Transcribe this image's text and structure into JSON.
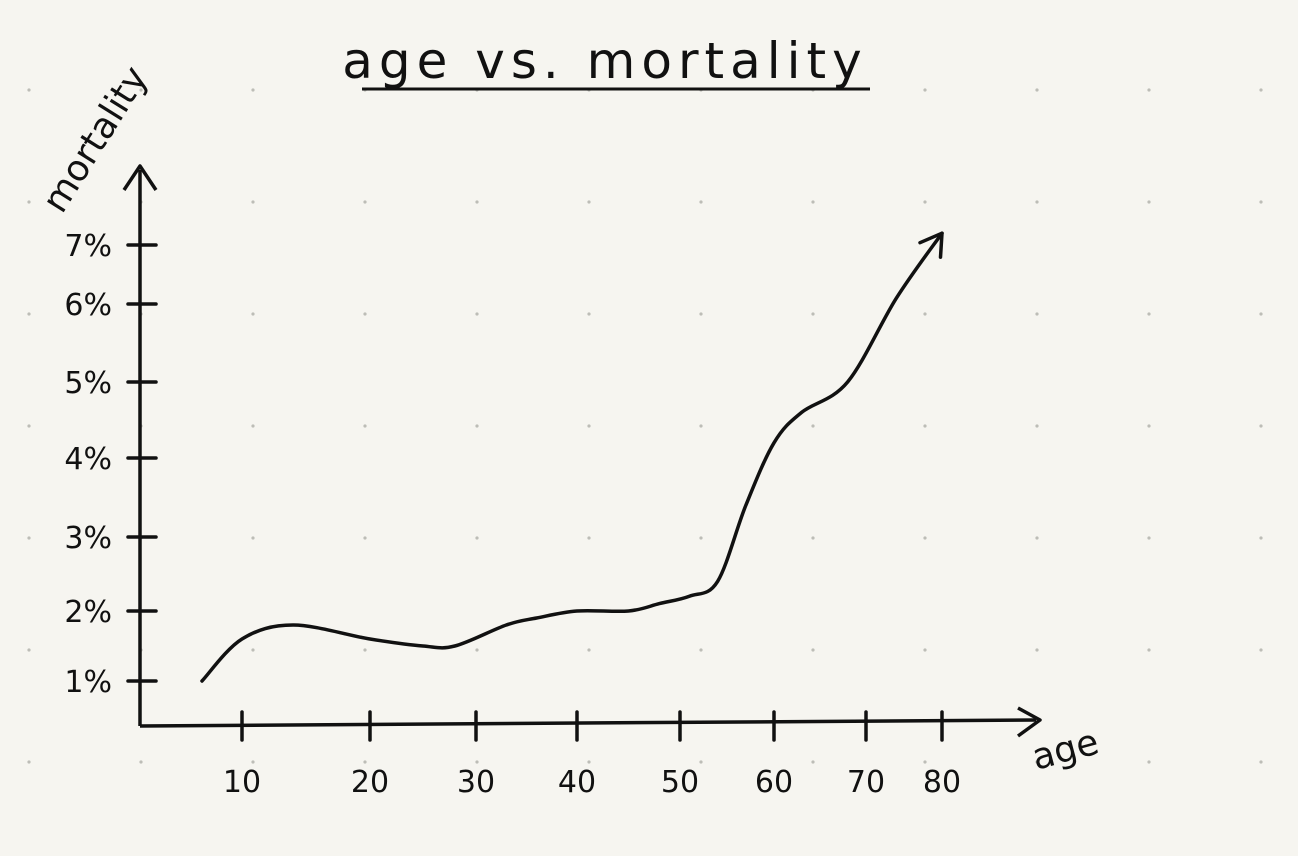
{
  "chart_data": {
    "type": "line",
    "title": "age vs. mortality",
    "xlabel": "age",
    "ylabel": "mortality",
    "x_tick_labels": [
      "10",
      "20",
      "30",
      "40",
      "50",
      "60",
      "70",
      "80"
    ],
    "x_ticks": [
      10,
      20,
      30,
      40,
      50,
      60,
      70,
      80
    ],
    "y_tick_labels": [
      "1%",
      "2%",
      "3%",
      "4%",
      "5%",
      "6%",
      "7%"
    ],
    "y_ticks": [
      1,
      2,
      3,
      4,
      5,
      6,
      7
    ],
    "grid": false,
    "series": [
      {
        "x": [
          6,
          10,
          14,
          20,
          25,
          28,
          33,
          36,
          40,
          45,
          48,
          51,
          54,
          57,
          60,
          63,
          68,
          74,
          80
        ],
        "y": [
          1.0,
          1.6,
          1.8,
          1.6,
          1.5,
          1.5,
          1.8,
          1.9,
          2.0,
          2.0,
          2.1,
          2.2,
          2.4,
          3.4,
          4.2,
          4.6,
          5.0,
          6.1,
          7.2
        ]
      }
    ],
    "colors": {
      "ink": "#111111",
      "paper": "#f6f5f0",
      "dots": "#bdbdb7"
    }
  }
}
